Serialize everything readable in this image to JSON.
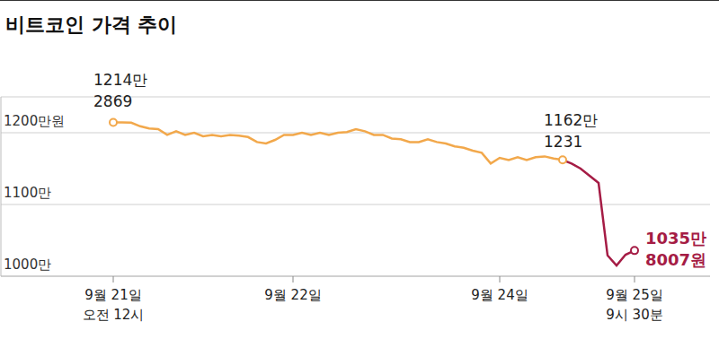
{
  "chart_data": {
    "type": "line",
    "title": "비트코인 가격 추이",
    "categories": [
      "9월 21일\n오전 12시",
      null,
      null,
      null,
      null,
      null,
      null,
      null,
      null,
      null,
      null,
      null,
      null,
      null,
      null,
      null,
      null,
      null,
      null,
      null,
      "9월 22일",
      null,
      null,
      null,
      null,
      null,
      null,
      null,
      null,
      null,
      null,
      null,
      null,
      null,
      null,
      null,
      null,
      null,
      null,
      null,
      null,
      null,
      null,
      "9월 24일",
      null,
      null,
      null,
      null,
      null,
      null,
      null,
      null,
      null,
      null,
      null,
      null,
      null,
      null,
      "9월 25일\n9시 30분"
    ],
    "series": [
      {
        "color": "#f2a84b",
        "values": [
          12142869,
          12145000,
          12140000,
          12090000,
          12060000,
          12050000,
          11970000,
          12020000,
          11970000,
          12000000,
          11950000,
          11970000,
          11950000,
          11970000,
          11960000,
          11940000,
          11870000,
          11850000,
          11900000,
          11970000,
          11970000,
          12000000,
          11970000,
          12000000,
          11970000,
          12000000,
          12010000,
          12050000,
          12020000,
          11970000,
          11970000,
          11920000,
          11910000,
          11870000,
          11870000,
          11910000,
          11870000,
          11850000,
          11810000,
          11790000,
          11750000,
          11720000,
          11570000,
          11650000,
          11620000,
          11660000,
          11620000,
          11660000,
          11670000,
          11640000,
          11621231,
          null,
          null,
          null,
          null,
          null,
          null,
          null,
          null
        ]
      },
      {
        "color": "#a51c45",
        "values": [
          null,
          null,
          null,
          null,
          null,
          null,
          null,
          null,
          null,
          null,
          null,
          null,
          null,
          null,
          null,
          null,
          null,
          null,
          null,
          null,
          null,
          null,
          null,
          null,
          null,
          null,
          null,
          null,
          null,
          null,
          null,
          null,
          null,
          null,
          null,
          null,
          null,
          null,
          null,
          null,
          null,
          null,
          null,
          null,
          null,
          null,
          null,
          null,
          null,
          null,
          11621231,
          11570000,
          11500000,
          11400000,
          11300000,
          10290000,
          10150000,
          10300000,
          10358007
        ]
      }
    ],
    "ylim": [
      10000000,
      12500000
    ],
    "yticks": [
      {
        "value": 10000000,
        "label": "1000만"
      },
      {
        "value": 11000000,
        "label": "1100만"
      },
      {
        "value": 12000000,
        "label": "1200만원"
      }
    ],
    "grid": true,
    "annotations": [
      {
        "x": 0,
        "y": 12142869,
        "text": "1214만\n2869",
        "color": "#222222"
      },
      {
        "x": 50,
        "y": 11621231,
        "text": "1162만\n1231",
        "color": "#222222"
      },
      {
        "x": 58,
        "y": 10358007,
        "text": "1035만\n8007원",
        "color": "#a51c45"
      }
    ]
  }
}
